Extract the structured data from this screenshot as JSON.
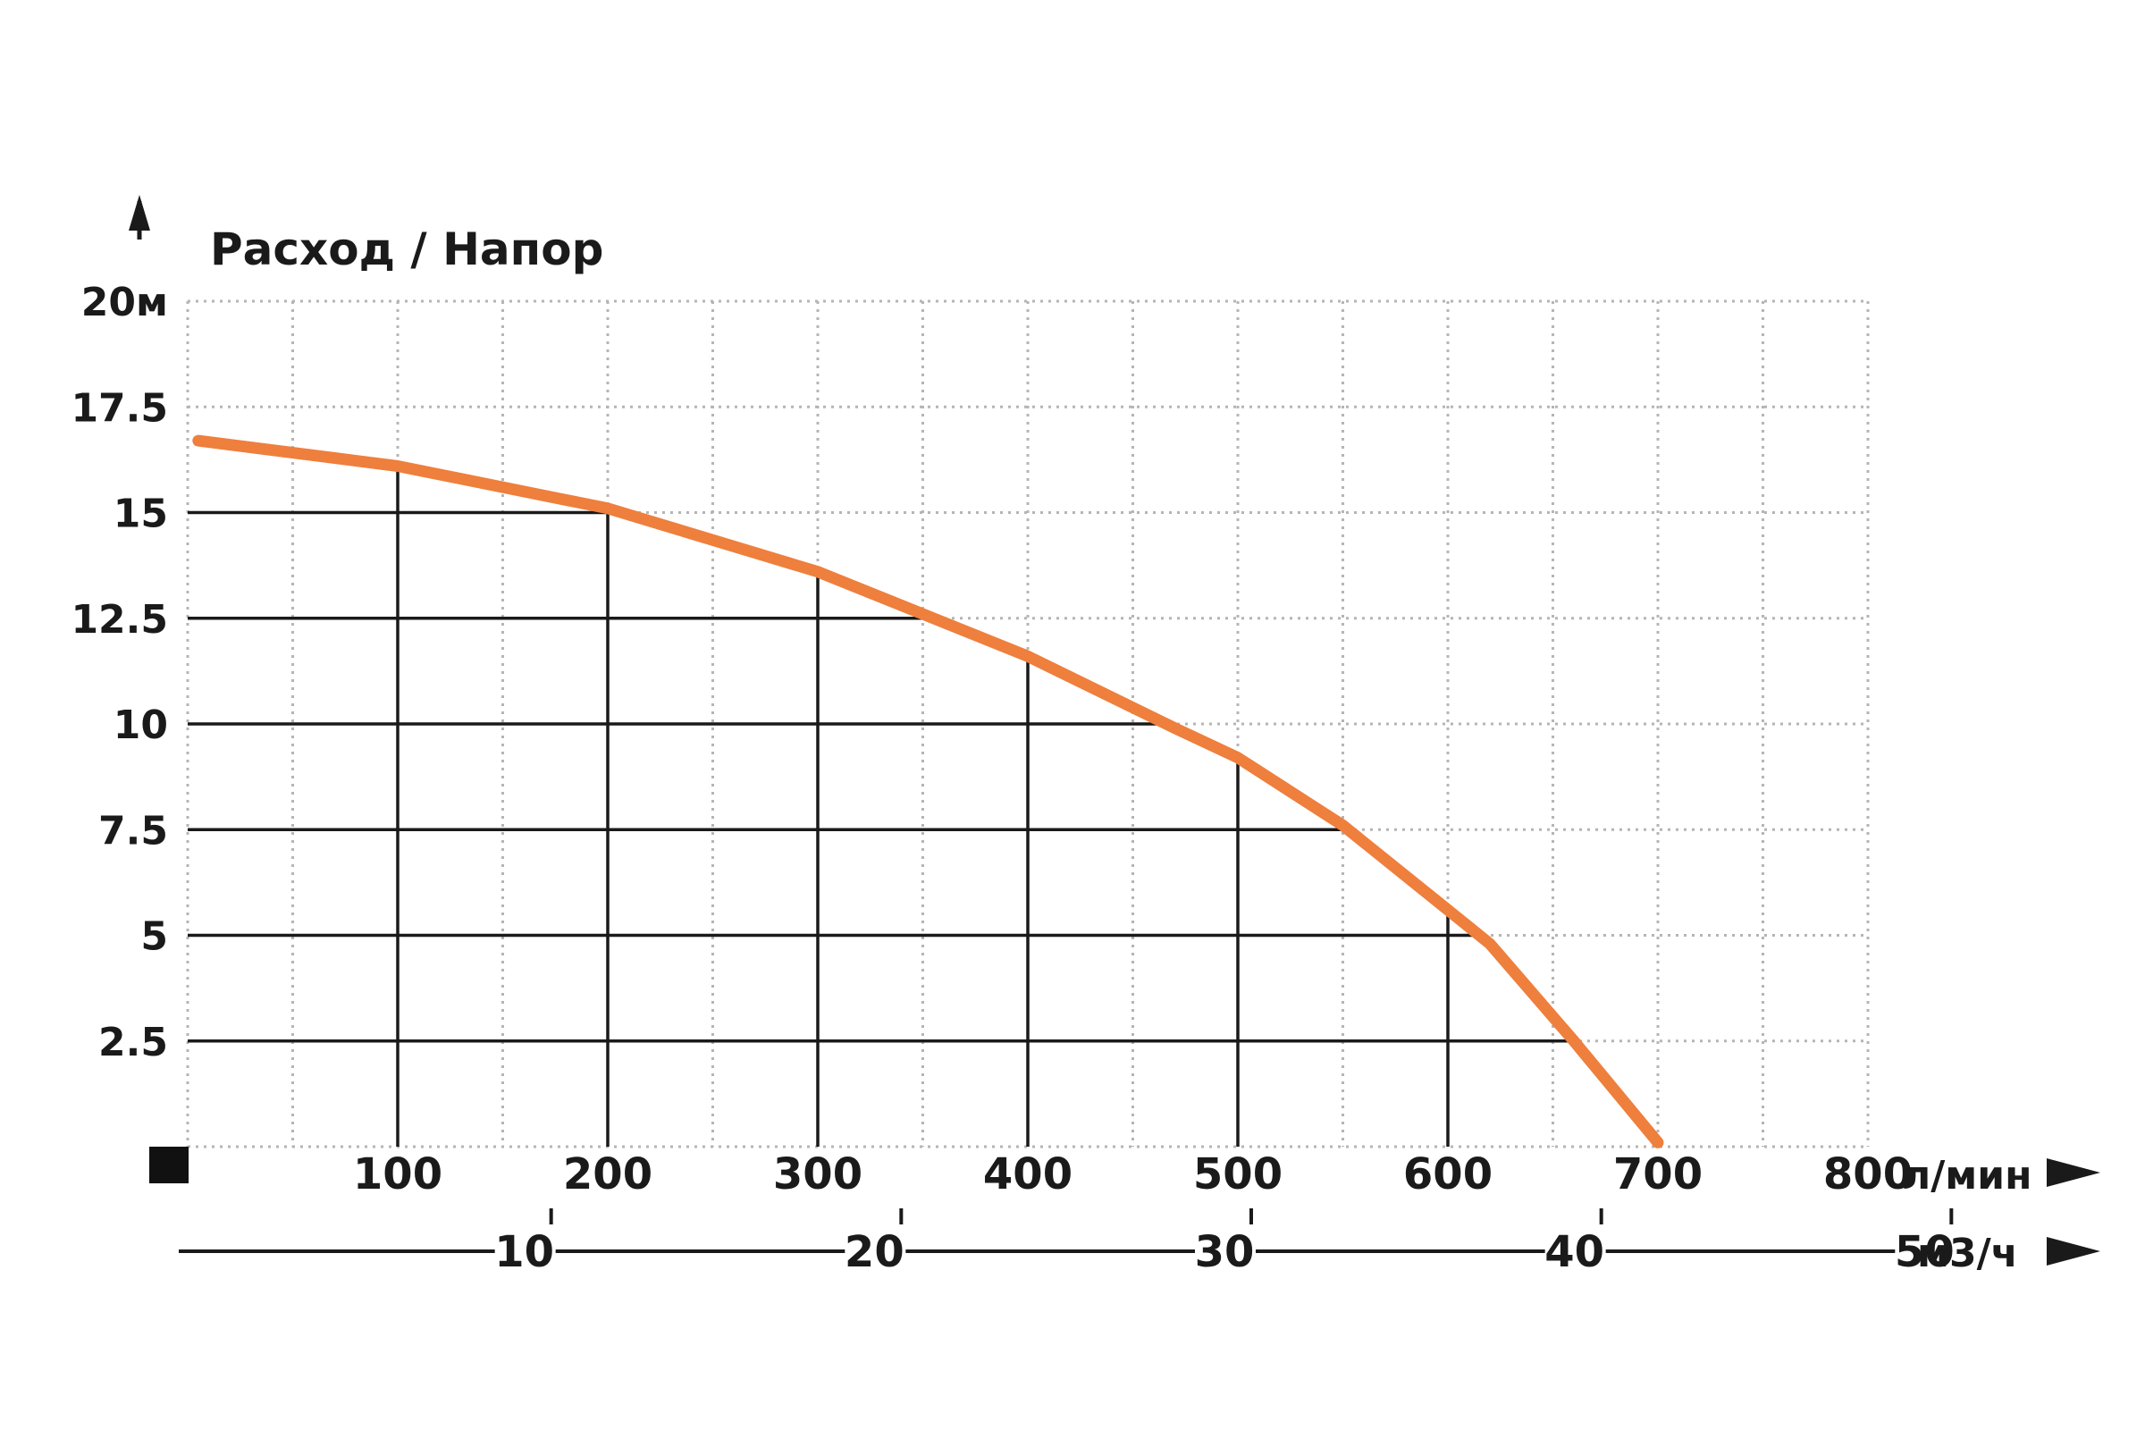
{
  "chart_data": {
    "type": "line",
    "title": "Расход / Напор",
    "y_axis": {
      "ticks": [
        "20м",
        "17.5",
        "15",
        "12.5",
        "10",
        "7.5",
        "5",
        "2.5"
      ],
      "tick_values": [
        20,
        17.5,
        15,
        12.5,
        10,
        7.5,
        5,
        2.5
      ],
      "range": [
        0,
        20
      ]
    },
    "x_axis": {
      "ticks": [
        "100",
        "200",
        "300",
        "400",
        "500",
        "600",
        "700",
        "800"
      ],
      "tick_values": [
        100,
        200,
        300,
        400,
        500,
        600,
        700,
        800
      ],
      "unit": "л/мин",
      "range": [
        0,
        800
      ]
    },
    "x2_axis": {
      "ticks": [
        "10",
        "20",
        "30",
        "40",
        "50"
      ],
      "tick_values": [
        10,
        20,
        30,
        40,
        50
      ],
      "unit": "м3/ч"
    },
    "series": [
      {
        "color": "#ee7f3d",
        "x": [
          5,
          100,
          200,
          300,
          350,
          400,
          470,
          500,
          550,
          600,
          620,
          660,
          700
        ],
        "y": [
          16.7,
          16.1,
          15.1,
          13.6,
          12.6,
          11.6,
          9.9,
          9.2,
          7.6,
          5.6,
          4.8,
          2.5,
          0.1
        ]
      }
    ],
    "grid": true
  }
}
